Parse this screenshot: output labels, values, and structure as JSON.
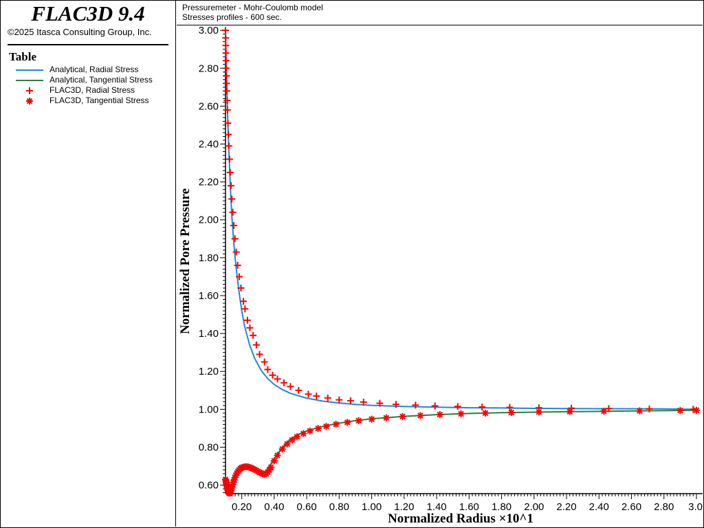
{
  "app": {
    "title": "FLAC3D 9.4",
    "copyright": "©2025 Itasca Consulting Group, Inc."
  },
  "legend": {
    "title": "Table",
    "items": [
      {
        "label": "Analytical, Radial Stress",
        "symbol": "line",
        "color": "#1f87d6"
      },
      {
        "label": "Analytical, Tangential Stress",
        "symbol": "line",
        "color": "#2e7d3c"
      },
      {
        "label": "FLAC3D, Radial Stress",
        "symbol": "plus",
        "color": "#ff0000"
      },
      {
        "label": "FLAC3D, Tangential Stress",
        "symbol": "asterisk",
        "color": "#ff0000"
      }
    ]
  },
  "plot_header": {
    "line1": "Pressuremeter - Mohr-Coulomb model",
    "line2": "Stresses profiles - 600 sec."
  },
  "chart_data": {
    "type": "line",
    "xlabel": "Normalized Radius ×10^1",
    "ylabel": "Normalized Pore Pressure",
    "xlim": [
      0.1,
      3.0
    ],
    "ylim": [
      0.555,
      3.015
    ],
    "xticks": [
      "0.20",
      "0.40",
      "0.60",
      "0.80",
      "1.00",
      "1.20",
      "1.40",
      "1.60",
      "1.80",
      "2.00",
      "2.20",
      "2.40",
      "2.60",
      "2.80",
      "3.0"
    ],
    "yticks": [
      "0.60",
      "0.80",
      "1.00",
      "1.20",
      "1.40",
      "1.60",
      "1.80",
      "2.00",
      "2.20",
      "2.40",
      "2.60",
      "2.80",
      "3.00"
    ],
    "grid": false,
    "series": [
      {
        "name": "Analytical, Radial Stress",
        "kind": "line",
        "color": "#1f87d6",
        "x": [
          0.1,
          0.105,
          0.11,
          0.115,
          0.12,
          0.13,
          0.14,
          0.15,
          0.16,
          0.18,
          0.2,
          0.22,
          0.25,
          0.28,
          0.32,
          0.36,
          0.4,
          0.45,
          0.5,
          0.6,
          0.7,
          0.8,
          0.9,
          1.0,
          1.2,
          1.4,
          1.6,
          1.8,
          2.0,
          2.2,
          2.4,
          2.6,
          2.8,
          3.0
        ],
        "y": [
          3.0,
          2.81,
          2.65,
          2.51,
          2.38,
          2.17,
          2.01,
          1.89,
          1.79,
          1.64,
          1.52,
          1.43,
          1.336,
          1.268,
          1.205,
          1.162,
          1.131,
          1.104,
          1.084,
          1.059,
          1.043,
          1.033,
          1.026,
          1.021,
          1.015,
          1.011,
          1.008,
          1.007,
          1.005,
          1.004,
          1.003,
          1.003,
          1.002,
          1.0
        ]
      },
      {
        "name": "Analytical, Tangential Stress",
        "kind": "line",
        "color": "#2e7d3c",
        "x": [
          0.1,
          0.105,
          0.11,
          0.115,
          0.12,
          0.125,
          0.13,
          0.14,
          0.15,
          0.16,
          0.17,
          0.18,
          0.2,
          0.22,
          0.24,
          0.26,
          0.28,
          0.3,
          0.32,
          0.34,
          0.36,
          0.38,
          0.4,
          0.45,
          0.5,
          0.55,
          0.6,
          0.7,
          0.8,
          0.9,
          1.0,
          1.2,
          1.4,
          1.6,
          1.8,
          2.0,
          2.2,
          2.4,
          2.6,
          2.8,
          3.0
        ],
        "y": [
          0.625,
          0.605,
          0.585,
          0.57,
          0.56,
          0.558,
          0.562,
          0.585,
          0.61,
          0.635,
          0.655,
          0.672,
          0.69,
          0.697,
          0.697,
          0.69,
          0.678,
          0.664,
          0.655,
          0.66,
          0.685,
          0.712,
          0.74,
          0.8,
          0.842,
          0.868,
          0.886,
          0.91,
          0.927,
          0.94,
          0.95,
          0.963,
          0.972,
          0.978,
          0.982,
          0.985,
          0.987,
          0.989,
          0.991,
          0.993,
          0.995
        ]
      },
      {
        "name": "FLAC3D, Radial Stress",
        "kind": "marker",
        "marker": "plus",
        "color": "#ff0000",
        "x": [
          0.1,
          0.101,
          0.102,
          0.103,
          0.104,
          0.105,
          0.106,
          0.107,
          0.108,
          0.11,
          0.112,
          0.115,
          0.118,
          0.121,
          0.125,
          0.129,
          0.134,
          0.139,
          0.145,
          0.151,
          0.158,
          0.166,
          0.175,
          0.185,
          0.195,
          0.21,
          0.22,
          0.235,
          0.25,
          0.27,
          0.29,
          0.31,
          0.34,
          0.36,
          0.39,
          0.42,
          0.46,
          0.5,
          0.55,
          0.61,
          0.66,
          0.73,
          0.8,
          0.87,
          0.95,
          1.05,
          1.15,
          1.27,
          1.39,
          1.53,
          1.68,
          1.85,
          2.03,
          2.23,
          2.46,
          2.71,
          2.98
        ],
        "y": [
          3.0,
          2.96,
          2.92,
          2.88,
          2.84,
          2.8,
          2.76,
          2.72,
          2.68,
          2.63,
          2.58,
          2.51,
          2.45,
          2.39,
          2.32,
          2.25,
          2.18,
          2.11,
          2.04,
          1.97,
          1.9,
          1.83,
          1.76,
          1.7,
          1.64,
          1.57,
          1.53,
          1.47,
          1.43,
          1.39,
          1.34,
          1.29,
          1.25,
          1.21,
          1.18,
          1.16,
          1.14,
          1.12,
          1.1,
          1.08,
          1.07,
          1.06,
          1.05,
          1.045,
          1.038,
          1.032,
          1.026,
          1.022,
          1.018,
          1.015,
          1.012,
          1.01,
          1.008,
          1.006,
          1.004,
          1.002,
          1.0
        ]
      },
      {
        "name": "FLAC3D, Tangential Stress",
        "kind": "marker",
        "marker": "asterisk",
        "color": "#ff0000",
        "x": [
          0.1,
          0.102,
          0.104,
          0.106,
          0.108,
          0.11,
          0.112,
          0.114,
          0.116,
          0.118,
          0.12,
          0.122,
          0.124,
          0.126,
          0.128,
          0.13,
          0.133,
          0.136,
          0.14,
          0.144,
          0.148,
          0.153,
          0.158,
          0.164,
          0.17,
          0.177,
          0.184,
          0.192,
          0.2,
          0.21,
          0.22,
          0.23,
          0.24,
          0.25,
          0.26,
          0.27,
          0.28,
          0.29,
          0.3,
          0.31,
          0.32,
          0.33,
          0.34,
          0.35,
          0.36,
          0.37,
          0.38,
          0.4,
          0.42,
          0.45,
          0.48,
          0.51,
          0.54,
          0.58,
          0.62,
          0.67,
          0.72,
          0.78,
          0.85,
          0.92,
          1.0,
          1.09,
          1.19,
          1.3,
          1.42,
          1.55,
          1.7,
          1.86,
          2.03,
          2.22,
          2.43,
          2.65,
          2.9,
          3.0
        ],
        "y": [
          0.63,
          0.622,
          0.614,
          0.606,
          0.598,
          0.59,
          0.582,
          0.575,
          0.569,
          0.564,
          0.56,
          0.558,
          0.557,
          0.558,
          0.56,
          0.563,
          0.57,
          0.578,
          0.59,
          0.602,
          0.614,
          0.628,
          0.64,
          0.652,
          0.663,
          0.672,
          0.68,
          0.687,
          0.692,
          0.695,
          0.697,
          0.697,
          0.696,
          0.693,
          0.69,
          0.686,
          0.682,
          0.677,
          0.672,
          0.667,
          0.663,
          0.659,
          0.657,
          0.66,
          0.668,
          0.68,
          0.694,
          0.728,
          0.757,
          0.79,
          0.817,
          0.838,
          0.855,
          0.872,
          0.886,
          0.899,
          0.91,
          0.921,
          0.931,
          0.94,
          0.948,
          0.955,
          0.962,
          0.967,
          0.972,
          0.976,
          0.98,
          0.983,
          0.986,
          0.988,
          0.99,
          0.992,
          0.994,
          0.995
        ]
      }
    ]
  }
}
